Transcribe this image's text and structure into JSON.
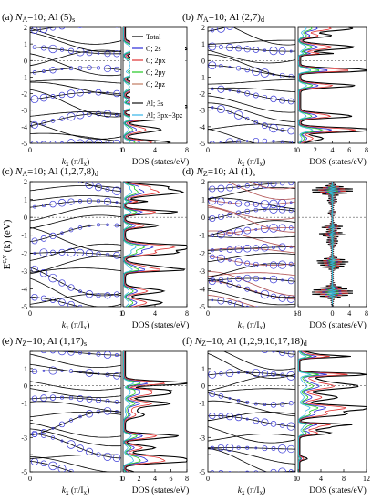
{
  "figure": {
    "y_axis_label": "E",
    "y_axis_sup": "c,v",
    "y_axis_rest": "(k) (eV)",
    "band_xlabel": "k",
    "band_xlabel_sub": "x",
    "band_xlabel_tail": "(π/I",
    "band_xlabel_sub2": "x",
    "band_xlabel_end": ")",
    "dos_xlabel": "DOS (states/eV)"
  },
  "legend": {
    "items": [
      {
        "label": "Total",
        "color": "#000000"
      },
      {
        "label": "C; 2s",
        "color": "#2a2ad8"
      },
      {
        "label": "C; 2px",
        "color": "#e03030"
      },
      {
        "label": "C; 2py",
        "color": "#22c822"
      },
      {
        "label": "C; 2pz",
        "color": "#c07a60"
      },
      {
        "label": "Al; 3s",
        "color": "#111111"
      },
      {
        "label": "Al; 3px+3pz",
        "color": "#35b5e8"
      }
    ]
  },
  "panels": [
    {
      "tag": "(a)",
      "title_pre": "N",
      "title_sub": "A",
      "title_post": "=10; Al (5)",
      "title_suffix": "s",
      "band_ticks": [
        "0",
        "1"
      ],
      "dos_ticks": [
        "0",
        "4",
        "8"
      ],
      "dos_max": 8,
      "dos_min": 0,
      "ytick_labels": [
        "2",
        "1",
        "0",
        "-1",
        "-2",
        "-3",
        "-4",
        "-5"
      ]
    },
    {
      "tag": "(b)",
      "title_pre": "N",
      "title_sub": "A",
      "title_post": "=10; Al (2,7)",
      "title_suffix": "d",
      "band_ticks": [
        "0",
        "1"
      ],
      "dos_ticks": [
        "0",
        "2",
        "4",
        "6",
        "8"
      ],
      "dos_max": 8,
      "dos_min": 0,
      "ytick_labels": [
        "2",
        "1",
        "0",
        "-1",
        "-2",
        "-3",
        "-4",
        "-5"
      ]
    },
    {
      "tag": "(c)",
      "title_pre": "N",
      "title_sub": "A",
      "title_post": "=10; Al (1,2,7,8)",
      "title_suffix": "d",
      "band_ticks": [
        "0",
        "1"
      ],
      "dos_ticks": [
        "0",
        "4",
        "8"
      ],
      "dos_max": 8,
      "dos_min": 0,
      "ytick_labels": [
        "2",
        "1",
        "0",
        "-1",
        "-2",
        "-3",
        "-4",
        "-5"
      ]
    },
    {
      "tag": "(d)",
      "title_pre": "N",
      "title_sub": "Z",
      "title_post": "=10; Al (1)",
      "title_suffix": "s",
      "band_ticks": [
        "0",
        "1"
      ],
      "dos_ticks": [
        "-8",
        "0",
        "4",
        "8"
      ],
      "dos_max": 8,
      "dos_min": -8,
      "ytick_labels": [
        "2",
        "1",
        "0",
        "-1",
        "-2",
        "-3",
        "-4",
        "-5"
      ]
    },
    {
      "tag": "(e)",
      "title_pre": "N",
      "title_sub": "Z",
      "title_post": "=10; Al (1,17)",
      "title_suffix": "s",
      "band_ticks": [
        "0",
        "1"
      ],
      "dos_ticks": [
        "0",
        "2",
        "4",
        "6",
        "8"
      ],
      "dos_max": 8,
      "dos_min": 0,
      "ytick_labels": [
        "1",
        "0",
        "-1",
        "-3",
        "-5"
      ]
    },
    {
      "tag": "(f)",
      "title_pre": "N",
      "title_sub": "Z",
      "title_post": "=10; Al (1,2,9,10,17,18)",
      "title_suffix": "d",
      "band_ticks": [
        "0",
        "1"
      ],
      "dos_ticks": [
        "0",
        "4",
        "8",
        "12"
      ],
      "dos_max": 12,
      "dos_min": 0,
      "ytick_labels": [
        "1",
        "0",
        "-1",
        "-3",
        "-5"
      ]
    }
  ]
}
